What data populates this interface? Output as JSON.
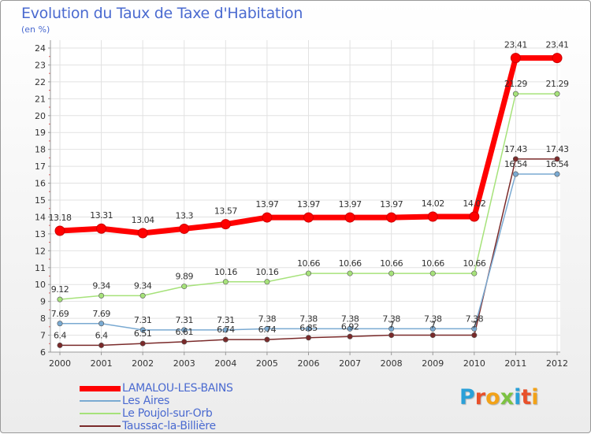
{
  "chart_data": {
    "type": "line",
    "title": "Evolution du Taux de Taxe d'Habitation",
    "ylabel": "(en %)",
    "xlabel": "",
    "x": [
      "2000",
      "2001",
      "2002",
      "2003",
      "2004",
      "2005",
      "2006",
      "2007",
      "2008",
      "2009",
      "2010",
      "2011",
      "2012"
    ],
    "ylim": [
      6,
      24
    ],
    "yticks": [
      "6",
      "7",
      "8",
      "9",
      "10",
      "11",
      "12",
      "13",
      "14",
      "15",
      "16",
      "17",
      "18",
      "19",
      "20",
      "21",
      "22",
      "23",
      "24"
    ],
    "series": [
      {
        "name": "LAMALOU-LES-BAINS",
        "color": "#ff0000",
        "values": [
          13.18,
          13.31,
          13.04,
          13.3,
          13.57,
          13.97,
          13.97,
          13.97,
          13.97,
          14.02,
          14.02,
          23.41,
          23.41
        ],
        "labels": [
          "13.18",
          "13.31",
          "13.04",
          "13.3",
          "13.57",
          "13.97",
          "13.97",
          "13.97",
          "13.97",
          "14.02",
          "14.02",
          "23.41",
          "23.41"
        ]
      },
      {
        "name": "Les Aires",
        "color": "#7aaad2",
        "values": [
          7.69,
          7.69,
          7.31,
          7.31,
          7.31,
          7.38,
          7.38,
          7.38,
          7.38,
          7.38,
          7.38,
          16.54,
          16.54
        ],
        "labels": [
          "7.69",
          "7.69",
          "7.31",
          "7.31",
          "7.31",
          "7.38",
          "7.38",
          "7.38",
          "7.38",
          "7.38",
          "7.38",
          "16.54",
          "16.54"
        ]
      },
      {
        "name": "Le Poujol-sur-Orb",
        "color": "#a6e27a",
        "values": [
          9.12,
          9.34,
          9.34,
          9.89,
          10.16,
          10.16,
          10.66,
          10.66,
          10.66,
          10.66,
          10.66,
          21.29,
          21.29
        ],
        "labels": [
          "9.12",
          "9.34",
          "9.34",
          "9.89",
          "10.16",
          "10.16",
          "10.66",
          "10.66",
          "10.66",
          "10.66",
          "10.66",
          "21.29",
          "21.29"
        ]
      },
      {
        "name": "Taussac-la-Billière",
        "color": "#7a2a2a",
        "values": [
          6.4,
          6.4,
          6.51,
          6.61,
          6.74,
          6.74,
          6.85,
          6.92,
          7,
          7,
          7,
          17.43,
          17.43
        ],
        "labels": [
          "6.4",
          "6.4",
          "6.51",
          "6.61",
          "6.74",
          "6.74",
          "6.85",
          "6.92",
          "7",
          "7",
          "7",
          "17.43",
          "17.43"
        ]
      }
    ]
  },
  "header": {
    "title": "Evolution du Taux de Taxe d'Habitation",
    "subtitle": "(en %)"
  },
  "logo": {
    "letters": [
      "P",
      "r",
      "o",
      "x",
      "i",
      "t",
      "i"
    ],
    "colors": [
      "#2aa0d8",
      "#e8502a",
      "#f2a218",
      "#7cc242",
      "#2aa0d8",
      "#e8502a",
      "#f2a218"
    ]
  }
}
